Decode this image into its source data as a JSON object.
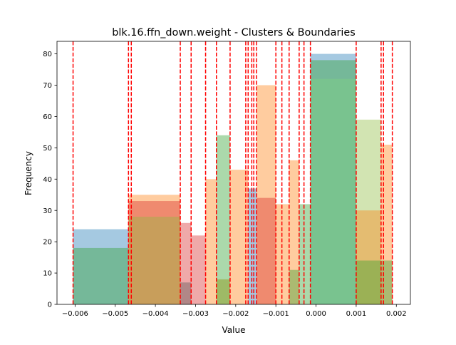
{
  "chart_data": {
    "type": "bar",
    "title": "blk.16.ffn_down.weight - Clusters & Boundaries",
    "xlabel": "Value",
    "ylabel": "Frequency",
    "xlim": [
      -0.00645,
      0.00235
    ],
    "ylim": [
      0,
      84
    ],
    "x_ticks": [
      {
        "value": -0.006,
        "label": "−0.006"
      },
      {
        "value": -0.005,
        "label": "−0.005"
      },
      {
        "value": -0.004,
        "label": "−0.004"
      },
      {
        "value": -0.003,
        "label": "−0.003"
      },
      {
        "value": -0.002,
        "label": "−0.002"
      },
      {
        "value": -0.001,
        "label": "−0.001"
      },
      {
        "value": 0.0,
        "label": "0.000"
      },
      {
        "value": 0.001,
        "label": "0.001"
      },
      {
        "value": 0.002,
        "label": "0.002"
      }
    ],
    "y_ticks": [
      {
        "value": 0,
        "label": "0"
      },
      {
        "value": 10,
        "label": "10"
      },
      {
        "value": 20,
        "label": "20"
      },
      {
        "value": 30,
        "label": "30"
      },
      {
        "value": 40,
        "label": "40"
      },
      {
        "value": 50,
        "label": "50"
      },
      {
        "value": 60,
        "label": "60"
      },
      {
        "value": 70,
        "label": "70"
      },
      {
        "value": 80,
        "label": "80"
      }
    ],
    "grid": false,
    "legend": "none",
    "bars": [
      {
        "x0": -0.00605,
        "x1": -0.00467,
        "value": 24,
        "color": "#1f77b4"
      },
      {
        "x0": -0.00467,
        "x1": -0.00338,
        "value": 35,
        "color": "#ff7f0e"
      },
      {
        "x0": -0.00605,
        "x1": -0.00467,
        "value": 18,
        "color": "#2ca02c"
      },
      {
        "x0": -0.00467,
        "x1": -0.00338,
        "value": 33,
        "color": "#d62728"
      },
      {
        "x0": -0.00467,
        "x1": -0.00338,
        "value": 28,
        "color": "#8fbc3f"
      },
      {
        "x0": -0.00338,
        "x1": -0.00311,
        "value": 26,
        "color": "#d62728"
      },
      {
        "x0": -0.00311,
        "x1": -0.00275,
        "value": 22,
        "color": "#d62728"
      },
      {
        "x0": -0.00338,
        "x1": -0.00311,
        "value": 7,
        "color": "#555555"
      },
      {
        "x0": -0.00275,
        "x1": -0.00248,
        "value": 40,
        "color": "#ff7f0e"
      },
      {
        "x0": -0.00248,
        "x1": -0.00214,
        "value": 54,
        "color": "#2ca02c"
      },
      {
        "x0": -0.00248,
        "x1": -0.00214,
        "value": 8,
        "color": "#8c8c00"
      },
      {
        "x0": -0.00214,
        "x1": -0.00169,
        "value": 43,
        "color": "#ff7f0e"
      },
      {
        "x0": -0.00169,
        "x1": -0.00148,
        "value": 37,
        "color": "#1f77b4"
      },
      {
        "x0": -0.00148,
        "x1": -0.001,
        "value": 70,
        "color": "#ff7f0e"
      },
      {
        "x0": -0.00148,
        "x1": -0.001,
        "value": 34,
        "color": "#d62728"
      },
      {
        "x0": -0.001,
        "x1": -0.00067,
        "value": 32,
        "color": "#ff7f0e"
      },
      {
        "x0": -0.00067,
        "x1": -0.00042,
        "value": 46,
        "color": "#ff7f0e"
      },
      {
        "x0": -0.00067,
        "x1": -0.00042,
        "value": 11,
        "color": "#2ca02c"
      },
      {
        "x0": -0.00042,
        "x1": -0.00014,
        "value": 32,
        "color": "#2ca02c"
      },
      {
        "x0": -0.00014,
        "x1": 0.001,
        "value": 80,
        "color": "#1f77b4"
      },
      {
        "x0": -0.00014,
        "x1": 0.001,
        "value": 78,
        "color": "#2ca02c"
      },
      {
        "x0": -0.00014,
        "x1": 0.001,
        "value": 72,
        "color": "#7fd47f"
      },
      {
        "x0": 0.001,
        "x1": 0.00162,
        "value": 59,
        "color": "#8fbc3f"
      },
      {
        "x0": 0.001,
        "x1": 0.00162,
        "value": 30,
        "color": "#ff7f0e"
      },
      {
        "x0": 0.001,
        "x1": 0.00162,
        "value": 14,
        "color": "#2ca02c"
      },
      {
        "x0": 0.00162,
        "x1": 0.0019,
        "value": 51,
        "color": "#ff7f0e"
      },
      {
        "x0": 0.00162,
        "x1": 0.0019,
        "value": 14,
        "color": "#2ca02c"
      }
    ],
    "bar_opacity": 0.4,
    "boundaries": [
      -0.00605,
      -0.00467,
      -0.0046,
      -0.00338,
      -0.00311,
      -0.00275,
      -0.00248,
      -0.00214,
      -0.00175,
      -0.00169,
      -0.0016,
      -0.00155,
      -0.00148,
      -0.001,
      -0.00085,
      -0.00067,
      -0.00042,
      -0.0003,
      -0.00014,
      0.001,
      0.00162,
      0.00168,
      0.0019
    ],
    "boundary_color": "#ff0000"
  }
}
